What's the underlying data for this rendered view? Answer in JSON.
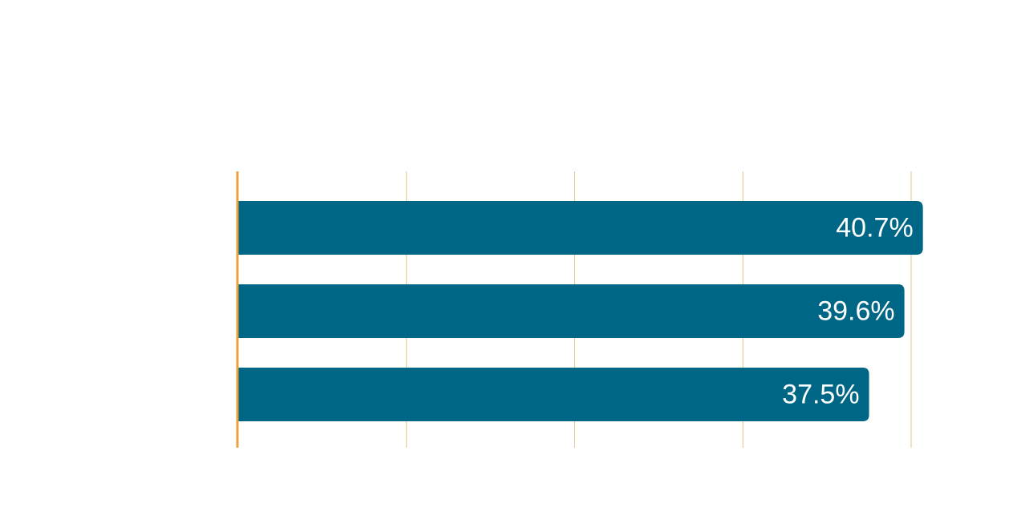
{
  "chart_data": {
    "type": "bar",
    "orientation": "horizontal",
    "categories": [
      "",
      "",
      ""
    ],
    "values": [
      40.7,
      39.6,
      37.5
    ],
    "value_labels": [
      "40.7%",
      "39.6%",
      "37.5%"
    ],
    "title": "",
    "xlabel": "",
    "ylabel": "",
    "xlim": [
      0,
      40
    ],
    "grid": true,
    "legend": "none",
    "bar_color": "#006685",
    "axis_color": "#E8A33D",
    "grid_color": "#E3C48A"
  }
}
